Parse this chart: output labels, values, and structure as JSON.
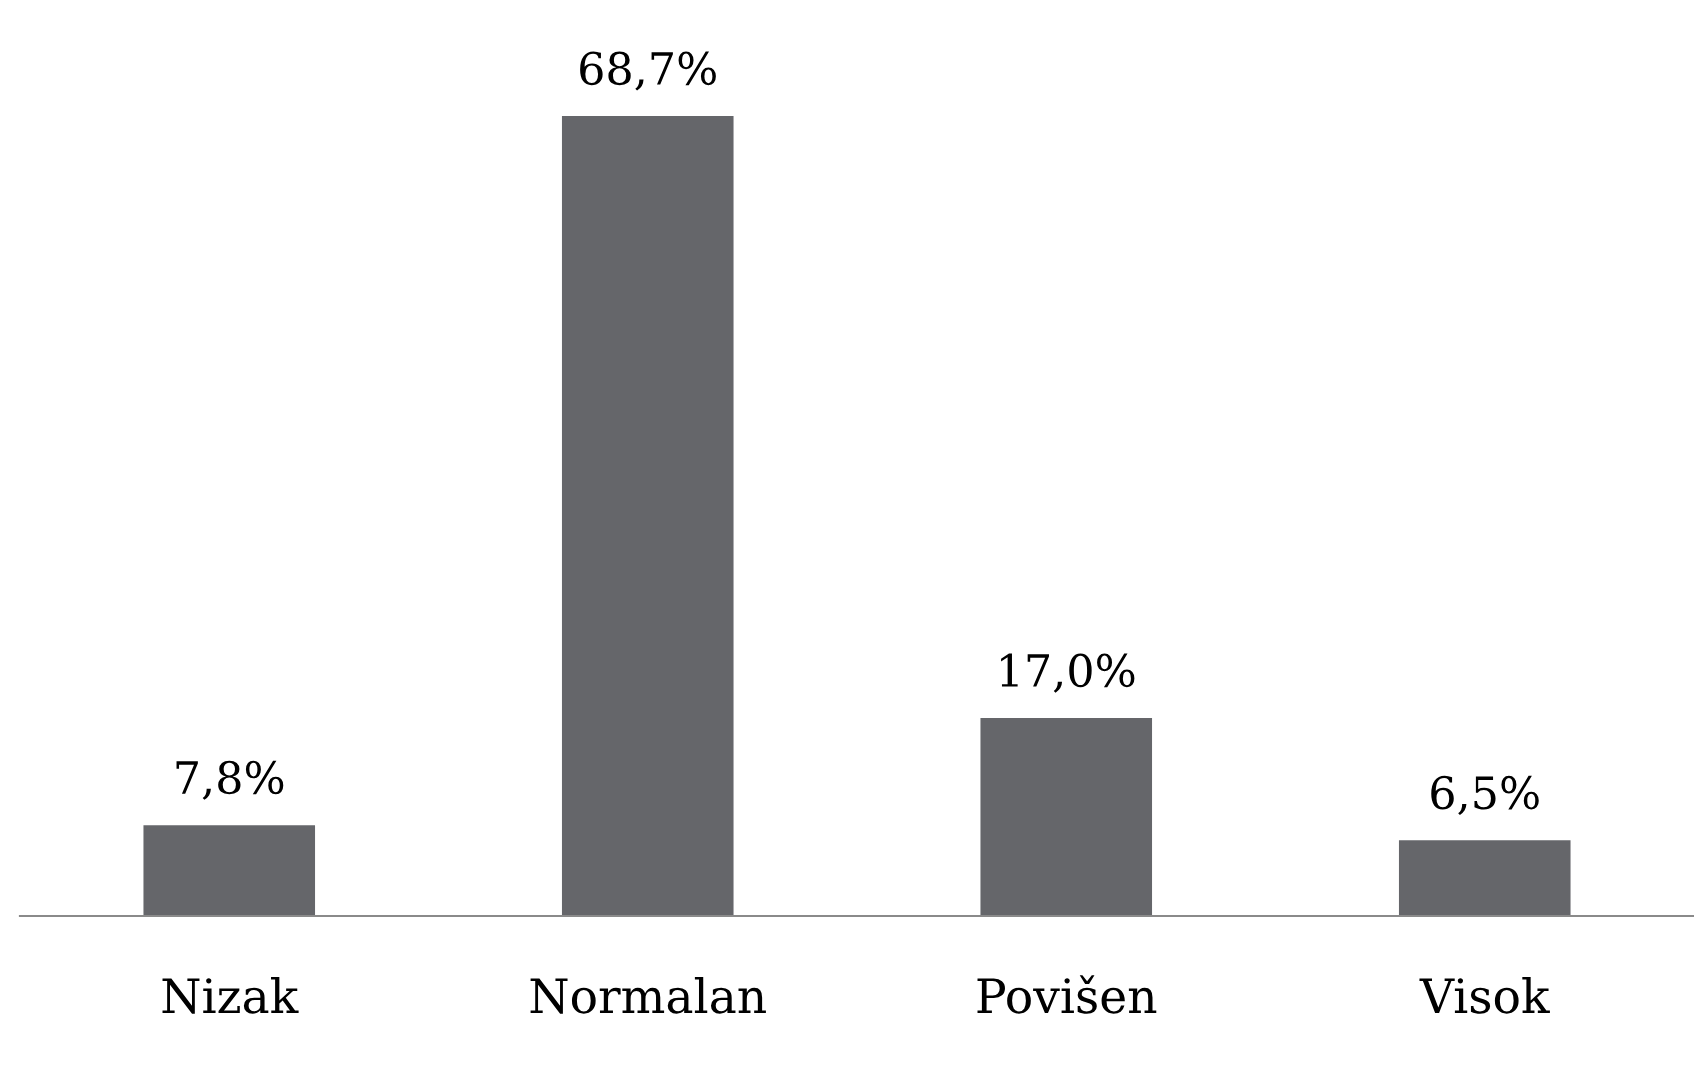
{
  "chart_data": {
    "type": "bar",
    "categories": [
      "Nizak",
      "Normalan",
      "Povišen",
      "Visok"
    ],
    "values": [
      7.8,
      68.7,
      17.0,
      6.5
    ],
    "value_labels": [
      "7,8%",
      "68,7%",
      "17,0%",
      "6,5%"
    ],
    "color": "#65666a",
    "grid": false,
    "legend": false
  }
}
